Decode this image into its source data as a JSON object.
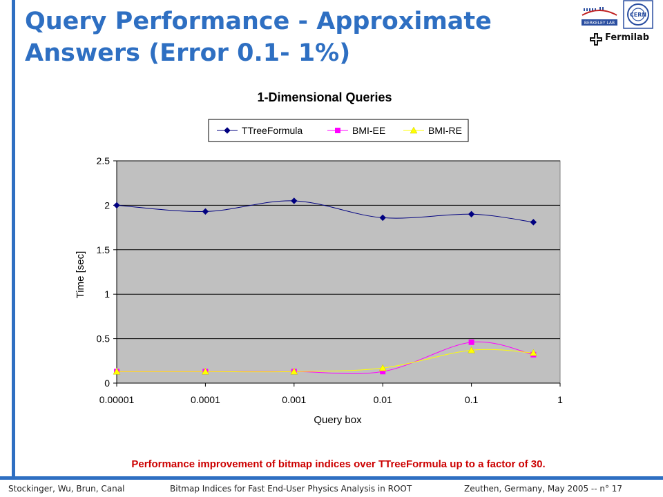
{
  "slide": {
    "title": "Query Performance - Approximate Answers (Error 0.1- 1%)",
    "caption": "Performance improvement of bitmap indices over TTreeFormula up to a factor of 30.",
    "footer": {
      "authors": "Stockinger, Wu, Brun, Canal",
      "talk": "Bitmap Indices for Fast End-User Physics Analysis in ROOT",
      "venue": "Zeuthen, Germany, May 2005 -- n° 17"
    },
    "logos": {
      "fermilab": "Fermilab",
      "berkeley": "BERKELEY LAB",
      "cern": "CERN"
    },
    "colors": {
      "accent": "#2e6fc2",
      "caption": "#cc0000",
      "plot_area": "#c0c0c0"
    }
  },
  "chart_data": {
    "type": "line",
    "title": "1-Dimensional Queries",
    "xlabel": "Query box",
    "ylabel": "Time [sec]",
    "x_scale": "log",
    "xlim": [
      1e-05,
      1
    ],
    "ylim": [
      0,
      2.5
    ],
    "x_ticks": [
      "0.00001",
      "0.0001",
      "0.001",
      "0.01",
      "0.1",
      "1"
    ],
    "y_ticks": [
      "0",
      "0.5",
      "1",
      "1.5",
      "2",
      "2.5"
    ],
    "grid": "horizontal",
    "legend_position": "top",
    "x": [
      1e-05,
      0.0001,
      0.001,
      0.01,
      0.1,
      0.5
    ],
    "series": [
      {
        "name": "TTreeFormula",
        "color": "#000080",
        "marker": "diamond",
        "values": [
          2.0,
          1.93,
          2.05,
          1.86,
          1.9,
          1.81
        ]
      },
      {
        "name": "BMI-EE",
        "color": "#ff00ff",
        "marker": "square",
        "values": [
          0.13,
          0.13,
          0.13,
          0.13,
          0.46,
          0.32
        ]
      },
      {
        "name": "BMI-RE",
        "color": "#ffff00",
        "marker": "triangle",
        "values": [
          0.13,
          0.13,
          0.13,
          0.17,
          0.37,
          0.34
        ]
      }
    ]
  }
}
